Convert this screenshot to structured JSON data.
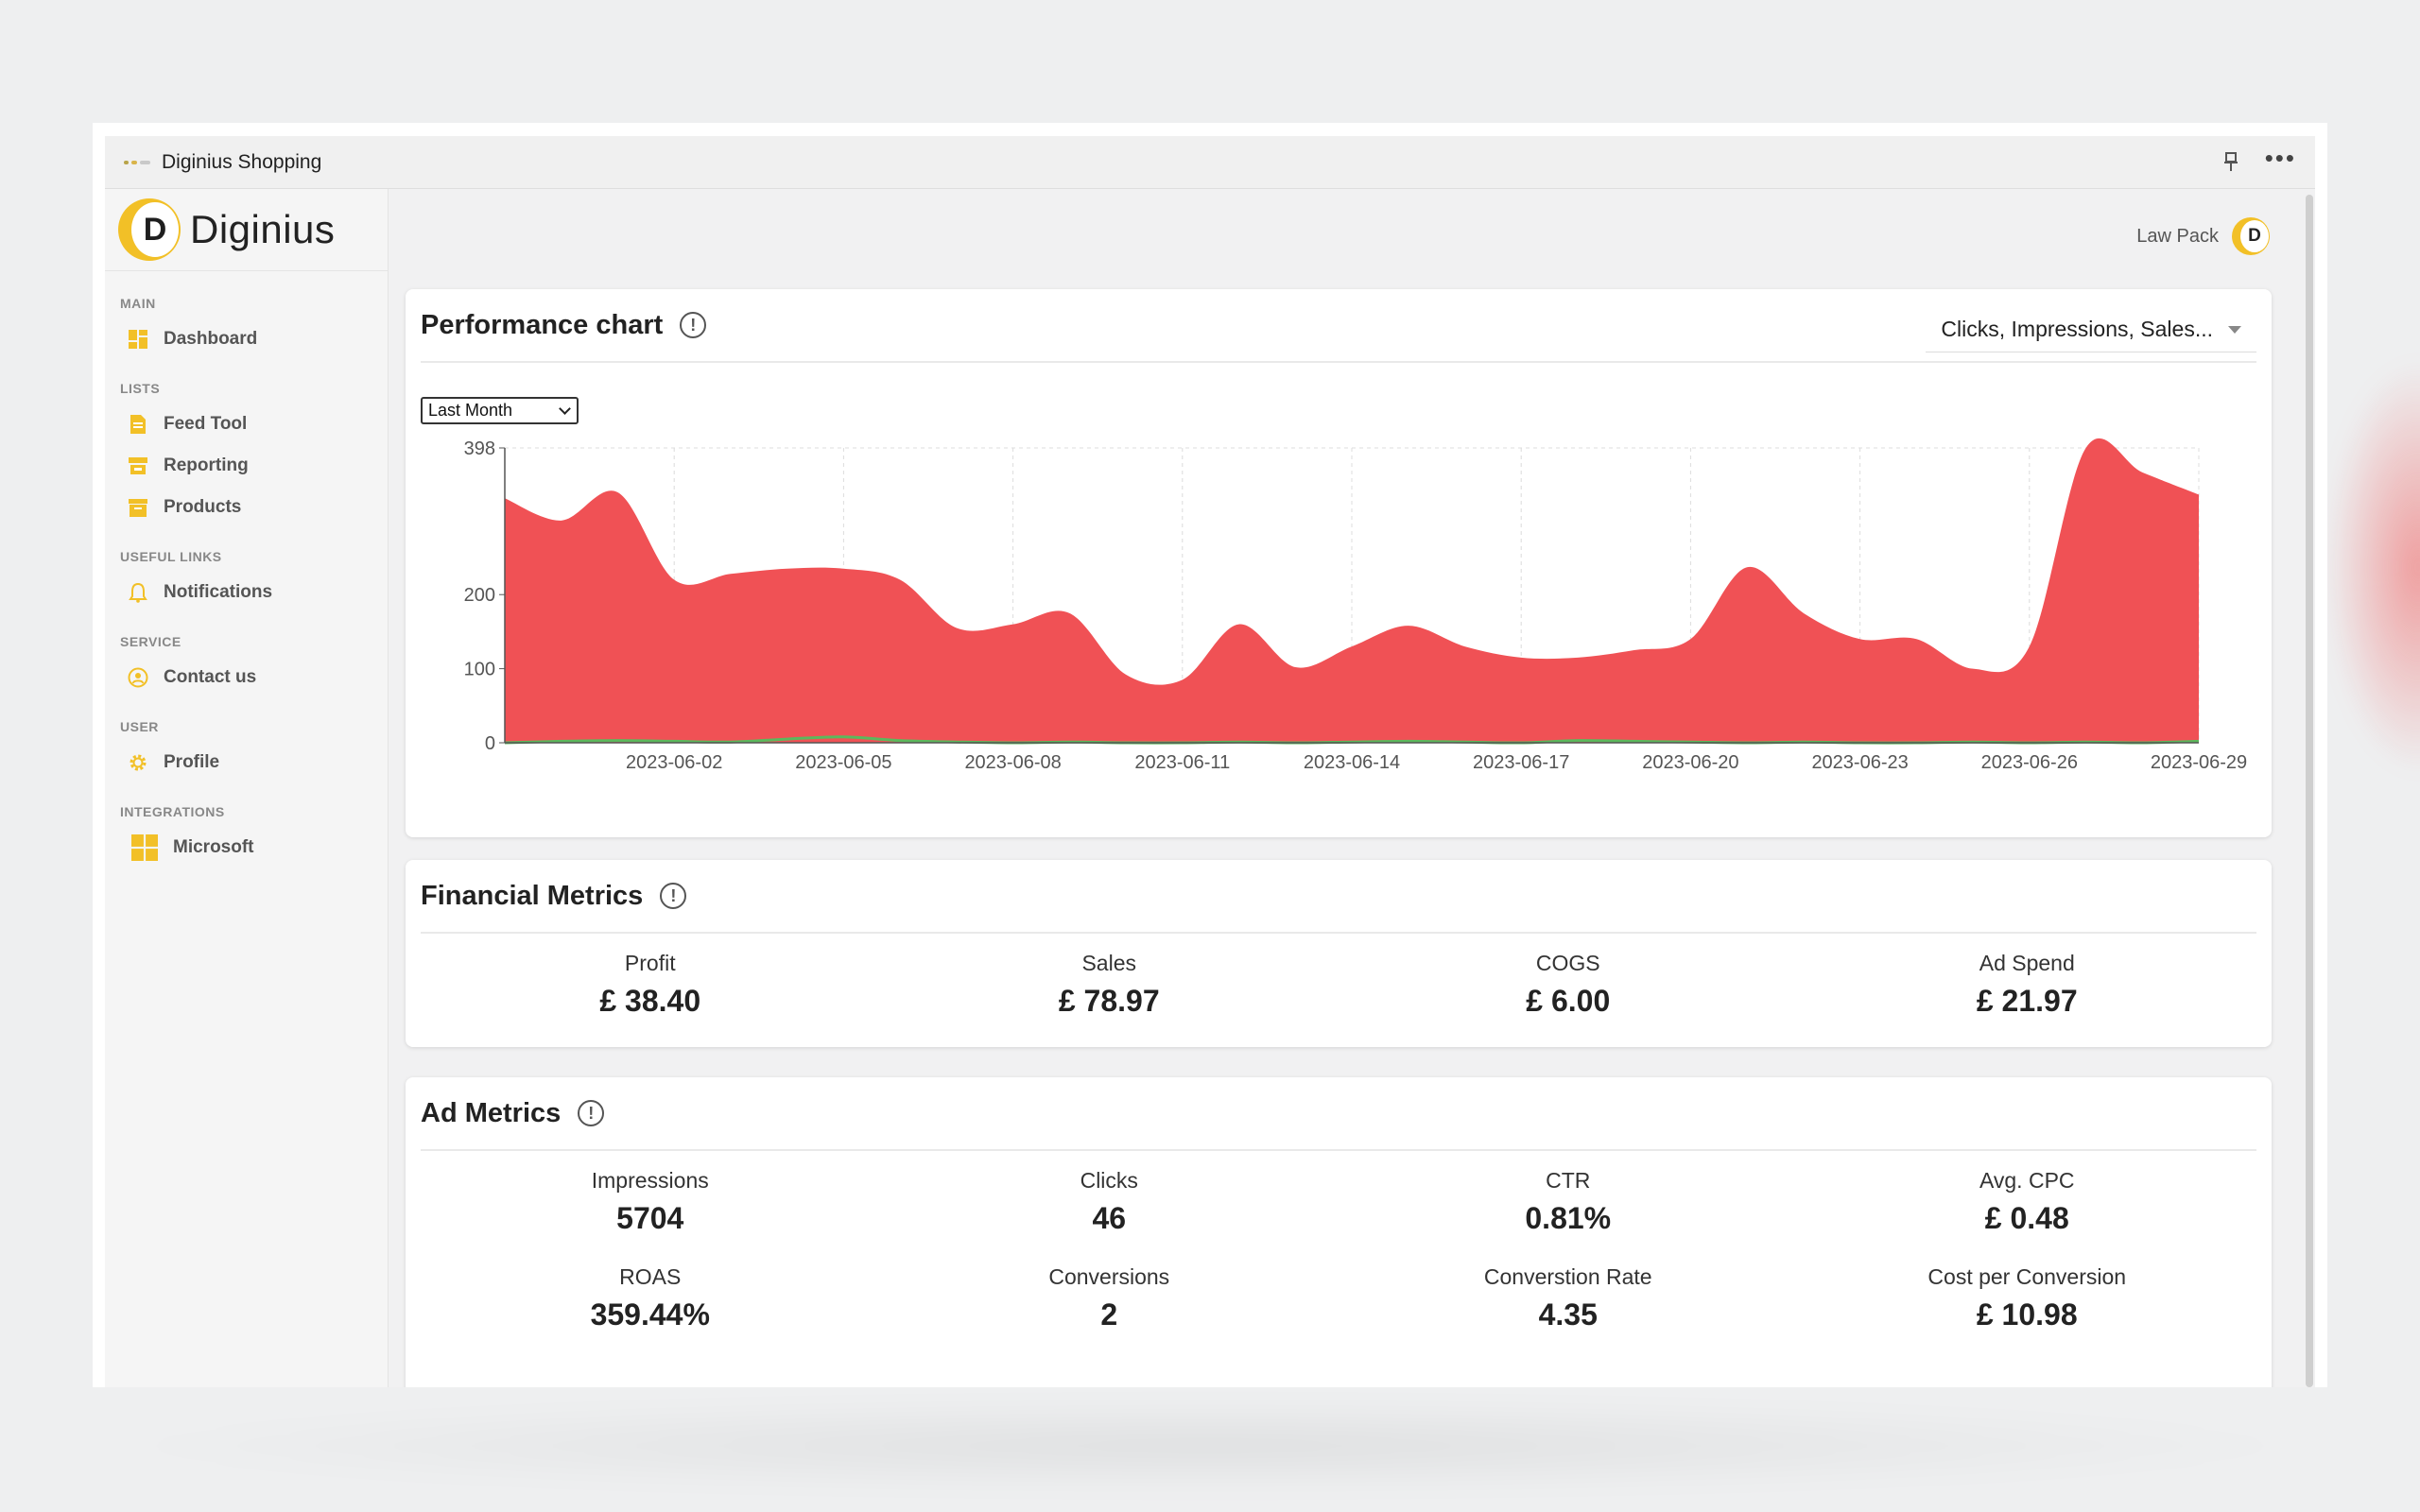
{
  "window": {
    "title": "Diginius Shopping"
  },
  "brand": {
    "logo_letter": "D",
    "name": "Diginius"
  },
  "user": {
    "name": "Law Pack",
    "avatar_letter": "D"
  },
  "sidebar": {
    "sections": [
      {
        "label": "MAIN",
        "items": [
          {
            "label": "Dashboard",
            "icon": "dashboard-icon"
          }
        ]
      },
      {
        "label": "LISTS",
        "items": [
          {
            "label": "Feed Tool",
            "icon": "document-icon"
          },
          {
            "label": "Reporting",
            "icon": "store-icon"
          },
          {
            "label": "Products",
            "icon": "archive-icon"
          }
        ]
      },
      {
        "label": "USEFUL LINKS",
        "items": [
          {
            "label": "Notifications",
            "icon": "bell-icon"
          }
        ]
      },
      {
        "label": "SERVICE",
        "items": [
          {
            "label": "Contact us",
            "icon": "person-circle-icon"
          }
        ]
      },
      {
        "label": "USER",
        "items": [
          {
            "label": "Profile",
            "icon": "gear-icon"
          }
        ]
      },
      {
        "label": "INTEGRATIONS",
        "items": [
          {
            "label": "Microsoft",
            "icon": "microsoft-icon"
          }
        ]
      }
    ]
  },
  "performance": {
    "title": "Performance chart",
    "metric_select": "Clicks, Impressions, Sales...",
    "range_select": "Last Month"
  },
  "chart_data": {
    "type": "area",
    "colors": {
      "main": "#f05155",
      "secondary": "#5cb85c"
    },
    "x_tick_labels": [
      "2023-06-02",
      "2023-06-05",
      "2023-06-08",
      "2023-06-11",
      "2023-06-14",
      "2023-06-17",
      "2023-06-20",
      "2023-06-23",
      "2023-06-26",
      "2023-06-29"
    ],
    "y_tick_labels": [
      "0",
      "100",
      "200",
      "398"
    ],
    "ylim": [
      0,
      398
    ],
    "x": [
      "2023-05-30",
      "2023-05-31",
      "2023-06-01",
      "2023-06-02",
      "2023-06-03",
      "2023-06-04",
      "2023-06-05",
      "2023-06-06",
      "2023-06-07",
      "2023-06-08",
      "2023-06-09",
      "2023-06-10",
      "2023-06-11",
      "2023-06-12",
      "2023-06-13",
      "2023-06-14",
      "2023-06-15",
      "2023-06-16",
      "2023-06-17",
      "2023-06-18",
      "2023-06-19",
      "2023-06-20",
      "2023-06-21",
      "2023-06-22",
      "2023-06-23",
      "2023-06-24",
      "2023-06-25",
      "2023-06-26",
      "2023-06-27",
      "2023-06-28",
      "2023-06-29"
    ],
    "series": [
      {
        "values": [
          330,
          300,
          338,
          220,
          228,
          235,
          235,
          220,
          155,
          160,
          175,
          92,
          85,
          160,
          102,
          130,
          158,
          130,
          115,
          115,
          125,
          140,
          237,
          175,
          140,
          140,
          100,
          130,
          398,
          365,
          335
        ]
      },
      {
        "values": [
          0,
          2,
          3,
          2,
          1,
          5,
          8,
          3,
          1,
          0,
          1,
          0,
          0,
          1,
          0,
          1,
          2,
          1,
          0,
          3,
          2,
          1,
          0,
          1,
          0,
          0,
          1,
          0,
          1,
          0,
          2
        ]
      }
    ]
  },
  "financial": {
    "title": "Financial Metrics",
    "items": [
      {
        "label": "Profit",
        "value": "£ 38.40"
      },
      {
        "label": "Sales",
        "value": "£ 78.97"
      },
      {
        "label": "COGS",
        "value": "£ 6.00"
      },
      {
        "label": "Ad Spend",
        "value": "£ 21.97"
      }
    ]
  },
  "ad": {
    "title": "Ad Metrics",
    "items": [
      {
        "label": "Impressions",
        "value": "5704"
      },
      {
        "label": "Clicks",
        "value": "46"
      },
      {
        "label": "CTR",
        "value": "0.81%"
      },
      {
        "label": "Avg. CPC",
        "value": "£ 0.48"
      },
      {
        "label": "ROAS",
        "value": "359.44%"
      },
      {
        "label": "Conversions",
        "value": "2"
      },
      {
        "label": "Converstion Rate",
        "value": "4.35"
      },
      {
        "label": "Cost per Conversion",
        "value": "£ 10.98"
      }
    ]
  }
}
